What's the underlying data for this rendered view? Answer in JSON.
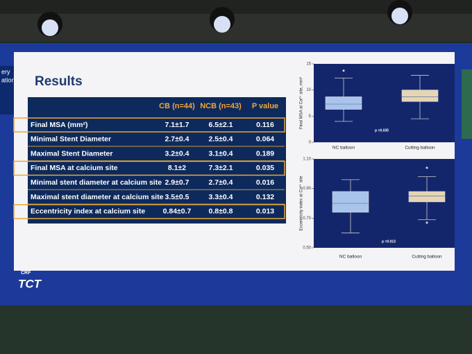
{
  "slide": {
    "title": "Results",
    "side_text": [
      "ery",
      "ation"
    ],
    "logo_small": "CRF",
    "logo": "TCT"
  },
  "table": {
    "header": [
      "CB (n=44)",
      "NCB (n=43)",
      "P value"
    ],
    "rows": [
      [
        "Final MSA (mm²)",
        "7.1±1.7",
        "6.5±2.1",
        "0.116"
      ],
      [
        "Minimal Stent Diameter",
        "2.7±0.4",
        "2.5±0.4",
        "0.064"
      ],
      [
        "Maximal Stent Diameter",
        "3.2±0.4",
        "3.1±0.4",
        "0.189"
      ],
      [
        "Final MSA at calcium site",
        "8.1±2",
        "7.3±2.1",
        "0.035"
      ],
      [
        "Minimal stent diameter at calcium site",
        "2.9±0.7",
        "2.7±0.4",
        "0.016"
      ],
      [
        "Maximal stent diameter at calcium site",
        "3.5±0.5",
        "3.3±0.4",
        "0.132"
      ],
      [
        "Eccentricity index at calcium site",
        "0.84±0.7",
        "0.8±0.8",
        "0.013"
      ]
    ]
  },
  "chart_data": [
    {
      "type": "box",
      "ylabel": "Final MSA at Ca²⁺ site, mm²",
      "annotation": "p =0.035",
      "categories": [
        "NC balloon",
        "Cutting balloon"
      ],
      "colors": [
        "#a9c4ea",
        "#e6d5b3"
      ],
      "min": [
        4,
        4.5
      ],
      "q1": [
        6.3,
        7.8
      ],
      "median": [
        7.3,
        8.7
      ],
      "q3": [
        8.7,
        10
      ],
      "max": [
        12.3,
        12.8
      ],
      "outliers": [
        [
          13.7
        ],
        []
      ],
      "ylim": [
        0,
        15
      ],
      "yticks": [
        0,
        5,
        10,
        15
      ]
    },
    {
      "type": "box",
      "ylabel": "Eccentricity index at Ca²⁺ site",
      "annotation": "p =0.013",
      "categories": [
        "NC balloon",
        "Cutting balloon"
      ],
      "colors": [
        "#a9c4ea",
        "#e6d5b3"
      ],
      "min": [
        0.6,
        0.69
      ],
      "q1": [
        0.74,
        0.81
      ],
      "median": [
        0.8,
        0.85
      ],
      "q3": [
        0.88,
        0.88
      ],
      "max": [
        0.96,
        0.98
      ],
      "outliers": [
        [],
        [
          1.04,
          0.67
        ]
      ],
      "ylim": [
        0.5,
        1.1
      ],
      "yticks": [
        {
          "value": 0.5,
          "label": "0.50"
        },
        {
          "value": 0.7,
          "label": "0.70"
        },
        {
          "value": 0.9,
          "label": "0.90"
        },
        {
          "value": 1.1,
          "label": "1.10"
        }
      ]
    }
  ]
}
